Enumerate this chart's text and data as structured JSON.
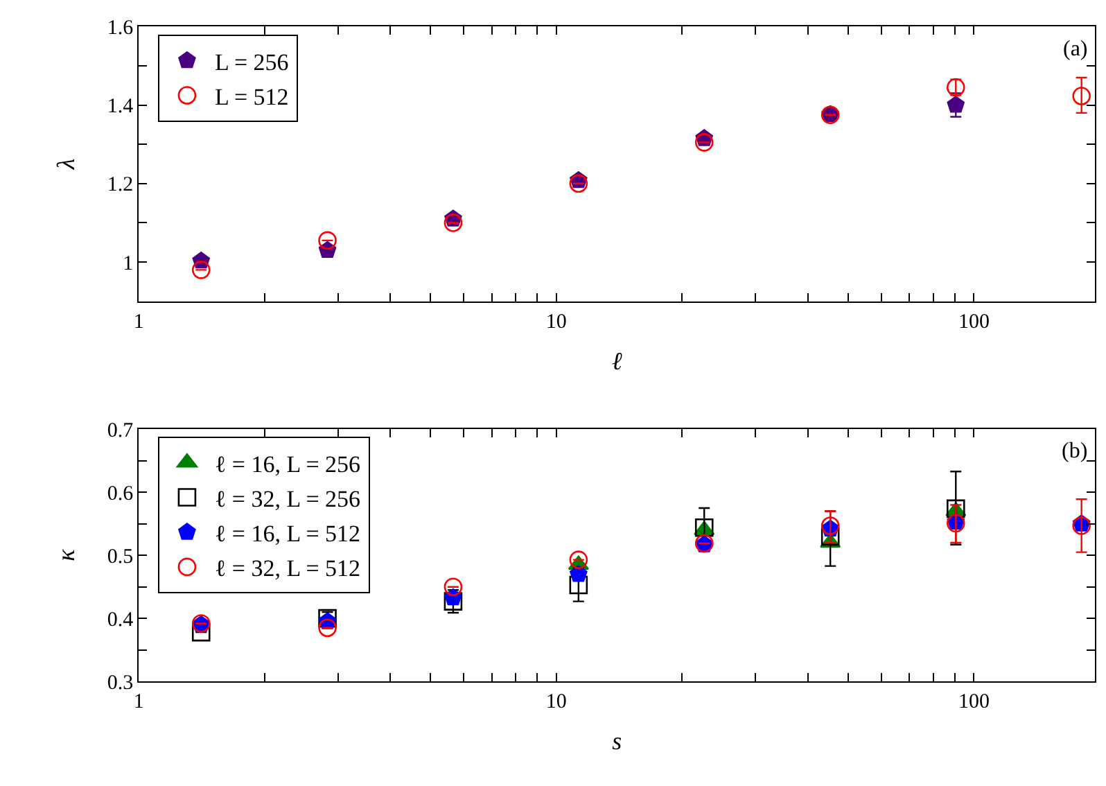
{
  "chart_data": [
    {
      "type": "scatter",
      "xlabel": "ℓ",
      "ylabel": "λ",
      "annotations": [
        "(a)"
      ],
      "log": "x",
      "legend": "top left",
      "xlim": [
        1,
        195
      ],
      "xticks": [
        1,
        {
          "value": 2,
          "label": null
        },
        {
          "value": 3,
          "label": null
        },
        {
          "value": 4,
          "label": null
        },
        {
          "value": 5,
          "label": null
        },
        {
          "value": 6,
          "label": null
        },
        {
          "value": 7,
          "label": null
        },
        {
          "value": 8,
          "label": null
        },
        {
          "value": 9,
          "label": null
        },
        10,
        {
          "value": 20,
          "label": null
        },
        {
          "value": 30,
          "label": null
        },
        {
          "value": 40,
          "label": null
        },
        {
          "value": 50,
          "label": null
        },
        {
          "value": 60,
          "label": null
        },
        {
          "value": 70,
          "label": null
        },
        {
          "value": 80,
          "label": null
        },
        {
          "value": 90,
          "label": null
        },
        100
      ],
      "ylim": [
        0.9,
        1.6
      ],
      "yticks": [
        1,
        {
          "value": 1.1,
          "label": null
        },
        1.2,
        {
          "value": 1.3,
          "label": null
        },
        1.4,
        {
          "value": 1.5,
          "label": null
        },
        1.6
      ],
      "x": [
        1.41,
        2.83,
        5.66,
        11.3,
        22.6,
        45.3,
        90.5,
        181
      ],
      "series": [
        {
          "name": "L = 256",
          "color": "#4b0082",
          "values": [
            1.003,
            1.03,
            1.11,
            1.208,
            1.315,
            1.376,
            1.4,
            null
          ],
          "errors": [
            null,
            null,
            null,
            null,
            null,
            null,
            0.03,
            null
          ]
        },
        {
          "name": "L = 512",
          "color": "#ff0000",
          "marker": "circle-open",
          "values": [
            0.98,
            1.055,
            1.1,
            1.2,
            1.305,
            1.375,
            1.445,
            1.423
          ],
          "errors": [
            null,
            null,
            null,
            null,
            null,
            null,
            0.02,
            [
              1.38,
              1.47
            ]
          ]
        }
      ]
    },
    {
      "type": "scatter",
      "xlabel": "s",
      "ylabel": "κ",
      "annotations": [
        "(b)"
      ],
      "log": "x",
      "legend": "top left",
      "xlim": [
        1,
        195
      ],
      "xticks": [
        1,
        {
          "value": 2,
          "label": null
        },
        {
          "value": 3,
          "label": null
        },
        {
          "value": 4,
          "label": null
        },
        {
          "value": 5,
          "label": null
        },
        {
          "value": 6,
          "label": null
        },
        {
          "value": 7,
          "label": null
        },
        {
          "value": 8,
          "label": null
        },
        {
          "value": 9,
          "label": null
        },
        10,
        {
          "value": 20,
          "label": null
        },
        {
          "value": 30,
          "label": null
        },
        {
          "value": 40,
          "label": null
        },
        {
          "value": 50,
          "label": null
        },
        {
          "value": 60,
          "label": null
        },
        {
          "value": 70,
          "label": null
        },
        {
          "value": 80,
          "label": null
        },
        {
          "value": 90,
          "label": null
        },
        100
      ],
      "ylim": [
        0.3,
        0.7
      ],
      "yticks": [
        0.3,
        {
          "value": 0.35,
          "label": null
        },
        0.4,
        {
          "value": 0.45,
          "label": null
        },
        0.5,
        {
          "value": 0.55,
          "label": null
        },
        0.6,
        {
          "value": 0.65,
          "label": null
        },
        0.7
      ],
      "x": [
        1.41,
        2.83,
        5.66,
        11.3,
        22.6,
        45.3,
        90.5,
        181
      ],
      "series": [
        {
          "name": "ℓ = 16, L = 256",
          "color": "#008000",
          "marker": "triangle-up",
          "values": [
            null,
            null,
            null,
            0.485,
            0.54,
            0.52,
            0.57,
            null
          ]
        },
        {
          "name": "ℓ = 32, L = 256",
          "color": "#000000",
          "marker": "square-open",
          "values": [
            0.378,
            0.4,
            0.427,
            0.453,
            0.544,
            0.53,
            0.574,
            null
          ],
          "errors": [
            null,
            0.01,
            0.018,
            [
              0.427,
              0.48
            ],
            [
              0.515,
              0.575
            ],
            [
              0.483,
              0.57
            ],
            [
              0.517,
              0.633
            ],
            null
          ]
        },
        {
          "name": "ℓ = 16, L = 512",
          "color": "#0000ff",
          "values": [
            0.39,
            0.395,
            0.433,
            0.47,
            0.517,
            0.542,
            0.553,
            0.55
          ]
        },
        {
          "name": "ℓ = 32, L = 512",
          "color": "#ff0000",
          "marker": "circle-open",
          "values": [
            0.392,
            0.385,
            0.45,
            0.493,
            0.519,
            0.547,
            0.551,
            0.547
          ],
          "errors": [
            null,
            null,
            null,
            null,
            null,
            [
              0.52,
              0.57
            ],
            [
              0.52,
              0.58
            ],
            [
              0.505,
              0.589
            ]
          ]
        }
      ]
    }
  ]
}
